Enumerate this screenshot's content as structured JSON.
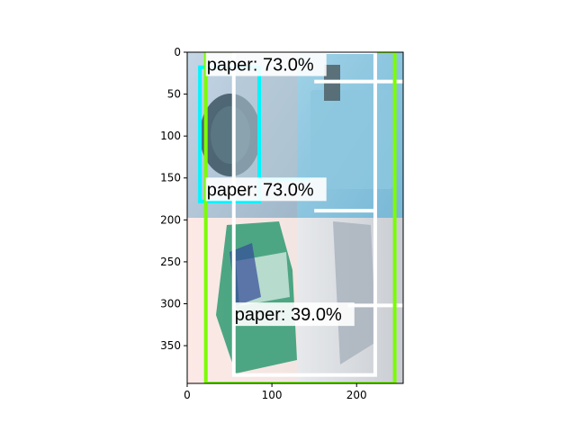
{
  "chart_data": {
    "type": "image",
    "image_extent": {
      "width": 255,
      "height": 395
    },
    "xlim": [
      0,
      255
    ],
    "ylim": [
      395,
      0
    ],
    "xticks": [
      0,
      100,
      200
    ],
    "yticks": [
      0,
      50,
      100,
      150,
      200,
      250,
      300,
      350
    ],
    "grid": false,
    "detections": [
      {
        "label": "paper: 73.0%",
        "color": "#00f5ff",
        "box": {
          "x0": 15,
          "y0": 18,
          "x1": 85,
          "y1": 178
        },
        "label_anchor": {
          "x": 22,
          "y": 22
        }
      },
      {
        "label": "paper: 73.0%",
        "color": "#7cfc00",
        "box": {
          "x0": 22,
          "y0": 0,
          "x1": 245,
          "y1": 395
        },
        "label_anchor": {
          "x": 22,
          "y": 171
        }
      },
      {
        "label": "paper: 39.0%",
        "color": "#ffffff",
        "box": {
          "x0": 55,
          "y0": 0,
          "x1": 222,
          "y1": 385
        },
        "label_anchor": {
          "x": 55,
          "y": 320
        }
      }
    ],
    "extra_lines": [
      {
        "color": "#ffffff",
        "x0": 150,
        "y0": 35,
        "x1": 255,
        "y1": 35
      },
      {
        "color": "#ffffff",
        "x0": 190,
        "y0": 302,
        "x1": 255,
        "y1": 302
      },
      {
        "color": "#ffffff",
        "x0": 150,
        "y0": 189,
        "x1": 222,
        "y1": 189
      },
      {
        "color": "#00f5ff",
        "x0": 82,
        "y0": 152,
        "x1": 145,
        "y1": 152
      }
    ]
  }
}
